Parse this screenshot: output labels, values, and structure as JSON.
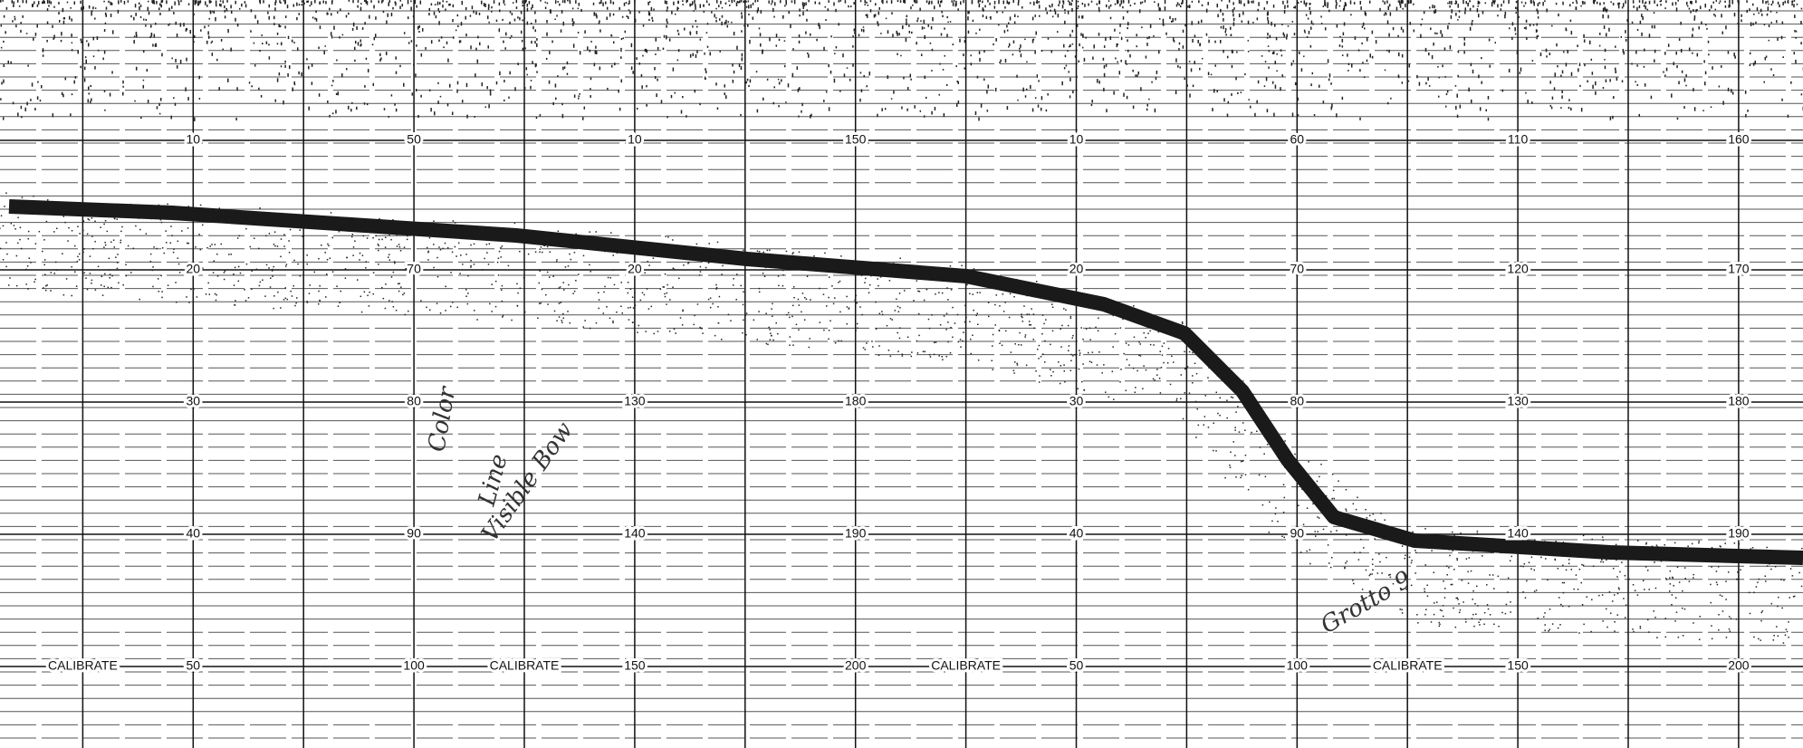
{
  "scale_rows": [
    [
      "10",
      "50",
      "10",
      "150",
      "10",
      "60",
      "110",
      "160"
    ],
    [
      "20",
      "70",
      "20",
      "20",
      "70",
      "120",
      "170"
    ],
    [
      "30",
      "80",
      "130",
      "180",
      "30",
      "80",
      "130",
      "180"
    ],
    [
      "40",
      "90",
      "140",
      "190",
      "40",
      "90",
      "140",
      "190"
    ],
    [
      "CALIBRATE",
      "50",
      "100",
      "CALIBRATE",
      "150",
      "200",
      "CALIBRATE",
      "50",
      "100",
      "CALIBRATE",
      "150",
      "200"
    ]
  ],
  "annotations": [
    "Color",
    "Line",
    "Visible Bow",
    "Grotto 9"
  ]
}
